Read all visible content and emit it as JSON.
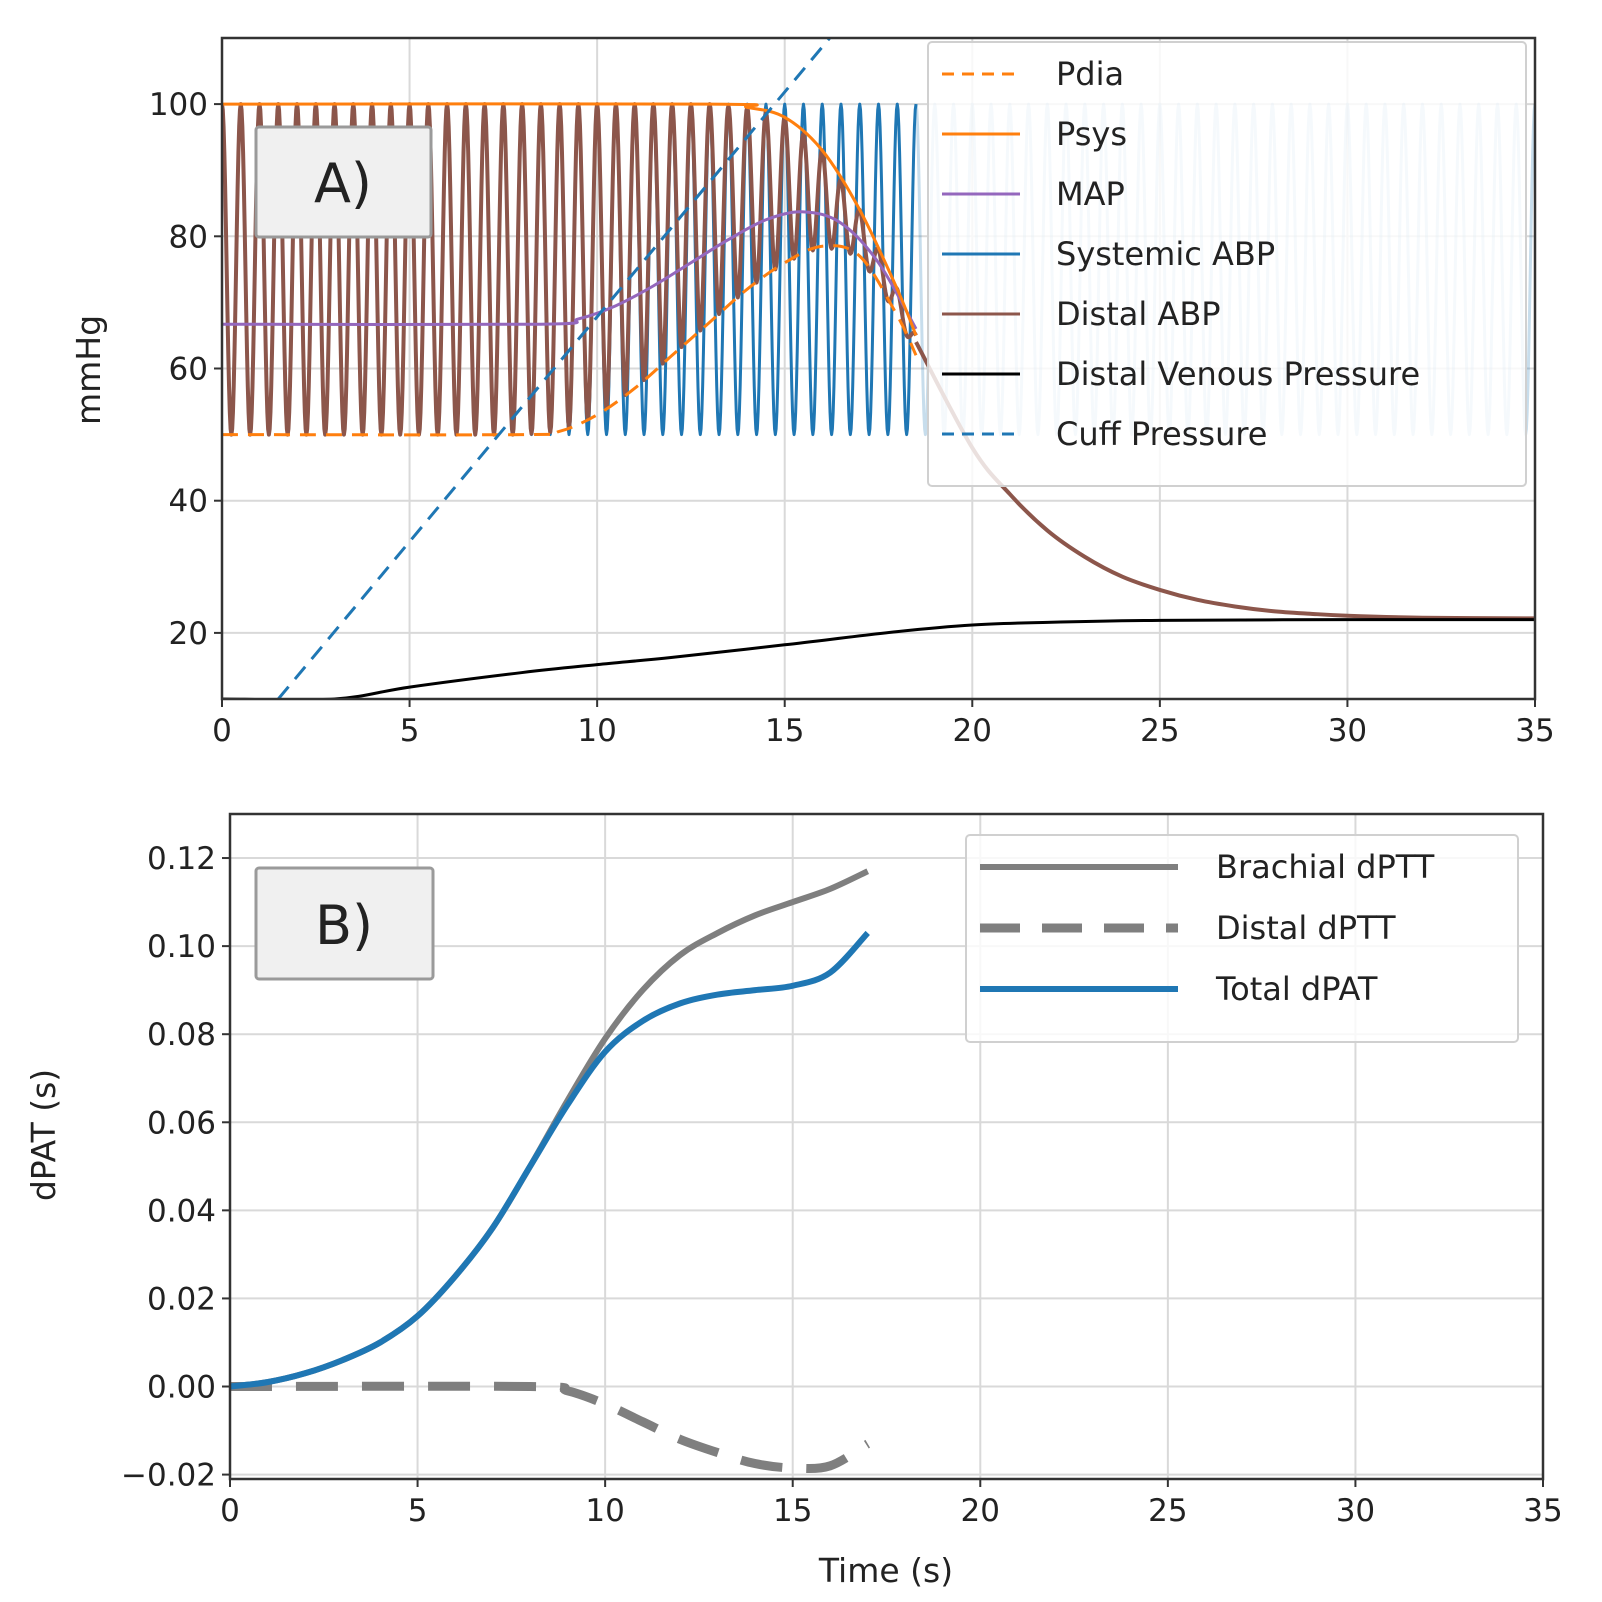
{
  "chart_data": [
    {
      "panel": "A)",
      "type": "line",
      "ylabel": "mmHg",
      "xlabel": "",
      "xlim": [
        0,
        35
      ],
      "ylim": [
        10,
        110
      ],
      "xticks": [
        0,
        5,
        10,
        15,
        20,
        25,
        30,
        35
      ],
      "yticks": [
        20,
        40,
        60,
        80,
        100
      ],
      "grid": true,
      "legend_position": "top-right",
      "series": [
        {
          "name": "Pdia",
          "color": "#ff7f0e",
          "dash": "dashed",
          "points": [
            [
              0,
              50
            ],
            [
              8,
              50
            ],
            [
              9,
              50.5
            ],
            [
              10,
              53
            ],
            [
              11,
              57
            ],
            [
              12,
              62
            ],
            [
              13,
              67
            ],
            [
              14,
              72
            ],
            [
              15,
              76
            ],
            [
              16,
              78.5
            ],
            [
              17,
              77
            ],
            [
              18,
              68
            ],
            [
              18.5,
              62
            ]
          ]
        },
        {
          "name": "Psys",
          "color": "#ff7f0e",
          "dash": "solid",
          "points": [
            [
              0,
              100
            ],
            [
              13,
              100
            ],
            [
              14,
              99.5
            ],
            [
              15,
              98
            ],
            [
              16,
              93
            ],
            [
              17,
              84
            ],
            [
              18,
              72
            ],
            [
              18.5,
              65
            ]
          ]
        },
        {
          "name": "MAP",
          "color": "#9467bd",
          "dash": "solid",
          "points": [
            [
              0,
              66.7
            ],
            [
              8.5,
              66.7
            ],
            [
              9.5,
              67.5
            ],
            [
              10.5,
              69.5
            ],
            [
              11.5,
              72.5
            ],
            [
              12.5,
              76
            ],
            [
              13.5,
              79.5
            ],
            [
              14.5,
              82.5
            ],
            [
              15.5,
              83.7
            ],
            [
              16.5,
              82
            ],
            [
              17.5,
              76
            ],
            [
              18.5,
              66
            ]
          ]
        },
        {
          "name": "Systemic ABP",
          "color": "#1f77b4",
          "dash": "solid",
          "wave": {
            "min": 50,
            "max": 100,
            "period": 0.5,
            "start": 0,
            "end": 35,
            "faded_after": 18.5
          }
        },
        {
          "name": "Distal ABP",
          "color": "#8c564b",
          "dash": "solid",
          "wave_until": 18.5,
          "decay": {
            "points": [
              [
                18.5,
                64
              ],
              [
                20,
                48
              ],
              [
                21,
                41
              ],
              [
                22,
                35.5
              ],
              [
                23,
                31.5
              ],
              [
                24,
                28.5
              ],
              [
                25,
                26.5
              ],
              [
                26,
                25
              ],
              [
                27,
                24
              ],
              [
                28,
                23.3
              ],
              [
                29,
                22.9
              ],
              [
                30,
                22.6
              ],
              [
                32,
                22.3
              ],
              [
                35,
                22.2
              ]
            ]
          }
        },
        {
          "name": "Distal Venous Pressure",
          "color": "#000000",
          "dash": "solid",
          "points": [
            [
              0,
              10
            ],
            [
              3,
              10
            ],
            [
              5,
              11.8
            ],
            [
              8,
              14
            ],
            [
              10,
              15.2
            ],
            [
              12,
              16.3
            ],
            [
              15,
              18.2
            ],
            [
              18,
              20.2
            ],
            [
              20,
              21.2
            ],
            [
              22,
              21.6
            ],
            [
              25,
              21.9
            ],
            [
              30,
              22
            ],
            [
              35,
              22
            ]
          ]
        },
        {
          "name": "Cuff Pressure",
          "color": "#1f77b4",
          "dash": "dashed",
          "points": [
            [
              1.5,
              10
            ],
            [
              16.2,
              110
            ]
          ]
        }
      ]
    },
    {
      "panel": "B)",
      "type": "line",
      "ylabel": "dPAT (s)",
      "xlabel": "Time (s)",
      "xlim": [
        0,
        35
      ],
      "ylim": [
        -0.021,
        0.13
      ],
      "xticks": [
        0,
        5,
        10,
        15,
        20,
        25,
        30,
        35
      ],
      "yticks": [
        -0.02,
        0.0,
        0.02,
        0.04,
        0.06,
        0.08,
        0.1,
        0.12
      ],
      "ytick_labels": [
        "−0.02",
        "0.00",
        "0.02",
        "0.04",
        "0.06",
        "0.08",
        "0.10",
        "0.12"
      ],
      "grid": true,
      "legend_position": "top-right",
      "series": [
        {
          "name": "Brachial dPTT",
          "color": "#7f7f7f",
          "dash": "solid",
          "width": 6,
          "points": [
            [
              0,
              0
            ],
            [
              1,
              0.001
            ],
            [
              2,
              0.003
            ],
            [
              3,
              0.006
            ],
            [
              4,
              0.01
            ],
            [
              5,
              0.016
            ],
            [
              6,
              0.025
            ],
            [
              7,
              0.036
            ],
            [
              8,
              0.05
            ],
            [
              9,
              0.065
            ],
            [
              10,
              0.079
            ],
            [
              11,
              0.09
            ],
            [
              12,
              0.098
            ],
            [
              13,
              0.103
            ],
            [
              14,
              0.107
            ],
            [
              15,
              0.11
            ],
            [
              16,
              0.113
            ],
            [
              17,
              0.117
            ]
          ]
        },
        {
          "name": "Distal  dPTT",
          "color": "#7f7f7f",
          "dash": "long-dashed",
          "width": 9,
          "points": [
            [
              0,
              0
            ],
            [
              8,
              0
            ],
            [
              9,
              -0.001
            ],
            [
              10,
              -0.004
            ],
            [
              11,
              -0.008
            ],
            [
              12,
              -0.012
            ],
            [
              13,
              -0.015
            ],
            [
              14,
              -0.0175
            ],
            [
              15,
              -0.0185
            ],
            [
              16,
              -0.018
            ],
            [
              17,
              -0.013
            ]
          ]
        },
        {
          "name": "Total dPAT",
          "color": "#1f77b4",
          "dash": "solid",
          "width": 6,
          "points": [
            [
              0,
              0
            ],
            [
              1,
              0.001
            ],
            [
              2,
              0.003
            ],
            [
              3,
              0.006
            ],
            [
              4,
              0.01
            ],
            [
              5,
              0.016
            ],
            [
              6,
              0.025
            ],
            [
              7,
              0.036
            ],
            [
              8,
              0.05
            ],
            [
              9,
              0.064
            ],
            [
              10,
              0.076
            ],
            [
              11,
              0.083
            ],
            [
              12,
              0.087
            ],
            [
              13,
              0.089
            ],
            [
              14,
              0.09
            ],
            [
              15,
              0.091
            ],
            [
              16,
              0.094
            ],
            [
              17,
              0.103
            ]
          ]
        }
      ]
    }
  ]
}
